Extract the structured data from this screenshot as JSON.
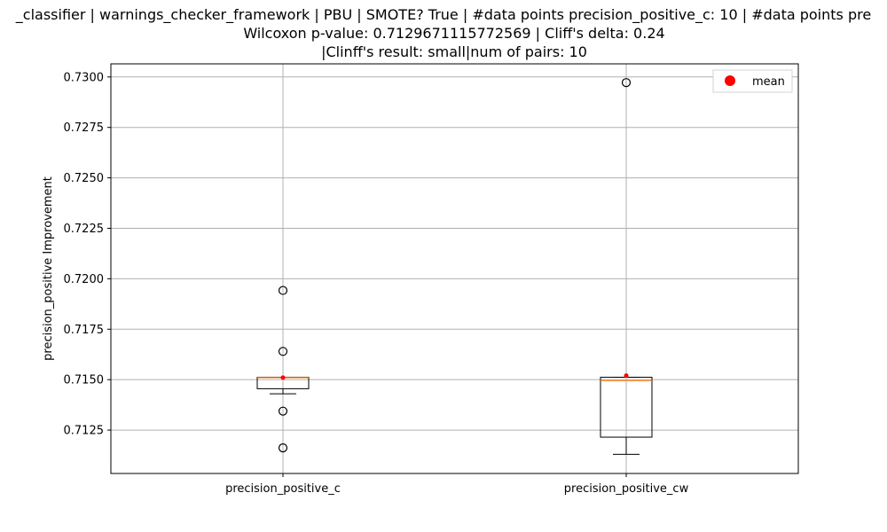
{
  "chart_data": {
    "type": "boxplot",
    "title_lines": [
      "_classifier | warnings_checker_framework | PBU | SMOTE? True | #data points precision_positive_c: 10 | #data points pre",
      "Wilcoxon p-value: 0.7129671115772569 | Cliff's delta: 0.24",
      "|Clinff's result: small|num of pairs: 10"
    ],
    "xlabel": "",
    "ylabel": "precision_positive Improvement",
    "ylim": [
      0.71035,
      0.73065
    ],
    "yticks": [
      0.7125,
      0.715,
      0.7175,
      0.72,
      0.7225,
      0.725,
      0.7275,
      0.73
    ],
    "ytick_labels": [
      "0.7125",
      "0.7150",
      "0.7175",
      "0.7200",
      "0.7225",
      "0.7250",
      "0.7275",
      "0.7300"
    ],
    "grid": true,
    "legend": {
      "position": "top-right",
      "entries": [
        {
          "label": "mean",
          "color": "#ff0000"
        }
      ]
    },
    "categories": [
      "precision_positive_c",
      "precision_positive_cw"
    ],
    "boxes": [
      {
        "name": "precision_positive_c",
        "whisker_low": 0.7143,
        "q1": 0.71455,
        "median": 0.7151,
        "q3": 0.71512,
        "whisker_high": 0.71512,
        "mean": 0.7151,
        "outliers": [
          0.71942,
          0.7164,
          0.71344,
          0.71162
        ]
      },
      {
        "name": "precision_positive_cw",
        "whisker_low": 0.7113,
        "q1": 0.71215,
        "median": 0.71495,
        "q3": 0.71512,
        "whisker_high": 0.71512,
        "mean": 0.7152,
        "outliers": [
          0.72972
        ]
      }
    ],
    "colors": {
      "median": "#ff7f0e",
      "mean": "#ff0000",
      "box": "#000000",
      "grid": "#b0b0b0"
    }
  }
}
